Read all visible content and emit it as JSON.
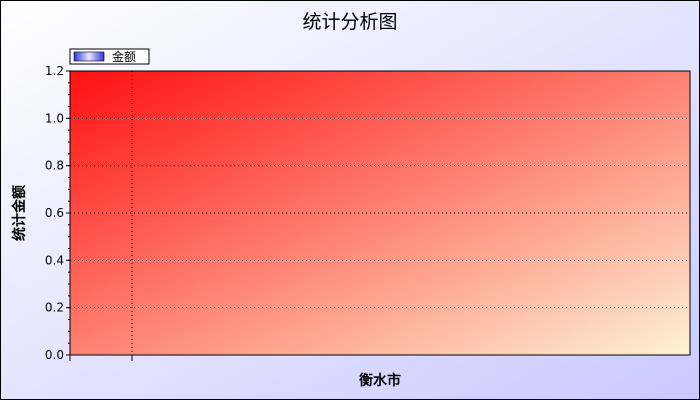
{
  "chart_data": {
    "type": "bar",
    "title": "统计分析图",
    "xlabel": "衡水市",
    "ylabel": "统计金额",
    "categories": [
      ""
    ],
    "series": [
      {
        "name": "金额",
        "values": [
          0
        ]
      }
    ],
    "ylim": [
      0,
      1.2
    ],
    "yticks": [
      "0.0",
      "0.2",
      "0.4",
      "0.6",
      "0.8",
      "1.0",
      "1.2"
    ],
    "grid": true,
    "legend_position": "top-left",
    "colors": {
      "background_start": "#ffffff",
      "background_end": "#c9c9ff",
      "plot_start": "#ff1010",
      "plot_end": "#fdf3d4",
      "grid": "#000000",
      "legend_swatch_start": "#3333dd",
      "legend_swatch_end": "#e8e8ff"
    }
  }
}
